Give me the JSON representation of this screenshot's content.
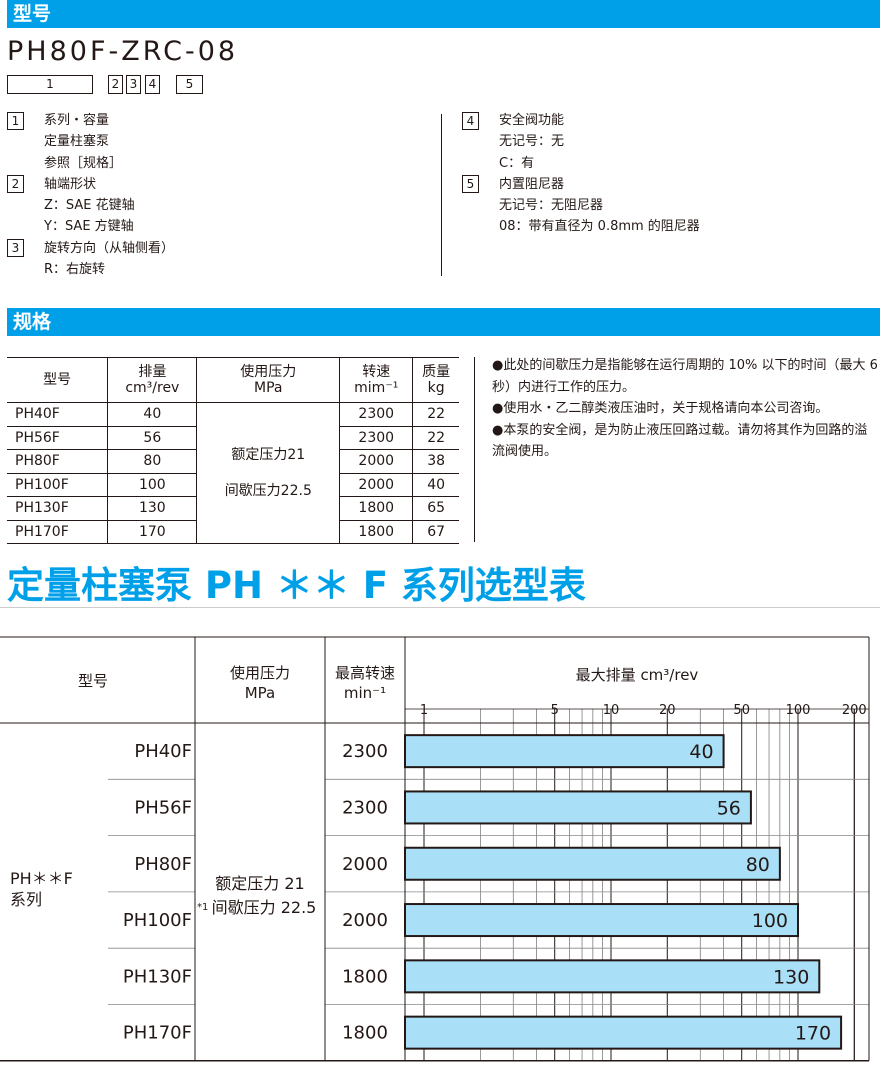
{
  "section1": {
    "title": "型号"
  },
  "model_code": "PH80F-ZRC-08",
  "code_boxes": [
    "1",
    "2",
    "3",
    "4",
    "5"
  ],
  "legend_left": [
    {
      "num": "1",
      "lines": [
        "系列・容量",
        "定量柱塞泵",
        "参照［规格］"
      ]
    },
    {
      "num": "2",
      "lines": [
        "轴端形状",
        "Z：SAE 花键轴",
        "Y：SAE 方键轴"
      ]
    },
    {
      "num": "3",
      "lines": [
        "旋转方向（从轴侧看）",
        "R：右旋转"
      ]
    }
  ],
  "legend_right": [
    {
      "num": "4",
      "lines": [
        "安全阀功能",
        "无记号：无",
        "C：有"
      ]
    },
    {
      "num": "5",
      "lines": [
        "内置阻尼器",
        "无记号：无阻尼器",
        "08：带有直径为 0.8mm 的阻尼器"
      ]
    }
  ],
  "section2": {
    "title": "规格"
  },
  "spec_table": {
    "headers": [
      [
        "型号"
      ],
      [
        "排量",
        "cm³/rev"
      ],
      [
        "使用压力",
        "MPa"
      ],
      [
        "转速",
        "mim⁻¹"
      ],
      [
        "质量",
        "kg"
      ]
    ],
    "pressure": [
      "额定压力21",
      "间歇压力22.5"
    ],
    "rows": [
      [
        "PH40F",
        "40",
        "2300",
        "22"
      ],
      [
        "PH56F",
        "56",
        "2300",
        "22"
      ],
      [
        "PH80F",
        "80",
        "2000",
        "38"
      ],
      [
        "PH100F",
        "100",
        "2000",
        "40"
      ],
      [
        "PH130F",
        "130",
        "1800",
        "65"
      ],
      [
        "PH170F",
        "170",
        "1800",
        "67"
      ]
    ]
  },
  "notes": [
    "●此处的间歇压力是指能够在运行周期的 10% 以下的时间（最大 6 秒）内进行工作的压力。",
    "●使用水・乙二醇类液压油时，关于规格请向本公司咨询。",
    "●本泵的安全阀，是为防止液压回路过载。请勿将其作为回路的溢流阀使用。"
  ],
  "big_title": "定量柱塞泵 PH ＊＊ F 系列选型表",
  "selection": {
    "headers": {
      "model": "型号",
      "pressure": [
        "使用压力",
        "MPa"
      ],
      "speed": [
        "最高转速",
        "min⁻¹"
      ]
    },
    "group": [
      "PH＊＊F",
      "系列"
    ],
    "pressure": [
      "额定压力 21",
      "间歇压力 22.5"
    ],
    "footnote_mark": "*1",
    "rows": [
      {
        "model": "PH40F",
        "speed": "2300"
      },
      {
        "model": "PH56F",
        "speed": "2300"
      },
      {
        "model": "PH80F",
        "speed": "2000"
      },
      {
        "model": "PH100F",
        "speed": "2000"
      },
      {
        "model": "PH130F",
        "speed": "1800"
      },
      {
        "model": "PH170F",
        "speed": "1800"
      }
    ]
  },
  "chart_data": {
    "type": "bar",
    "orientation": "horizontal",
    "xscale": "log",
    "xlabel": "最大排量 cm³/rev",
    "xticks": [
      1,
      5,
      10,
      20,
      50,
      100,
      200
    ],
    "xlim": [
      0.8,
      200
    ],
    "categories": [
      "PH40F",
      "PH56F",
      "PH80F",
      "PH100F",
      "PH130F",
      "PH170F"
    ],
    "values": [
      40,
      56,
      80,
      100,
      130,
      170
    ],
    "bar_color": "#a9dff7",
    "grid": true
  },
  "colors": {
    "accent": "#00a0e9"
  }
}
